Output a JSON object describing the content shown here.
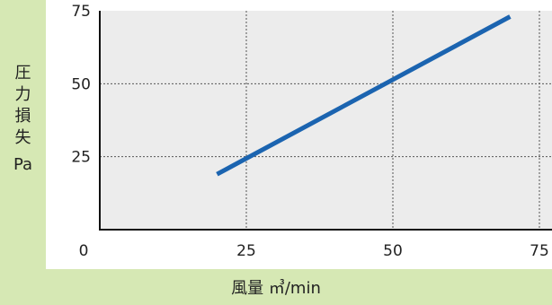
{
  "chart_data": {
    "type": "line",
    "title": "",
    "ylabel_chars": [
      "圧",
      "力",
      "損",
      "失"
    ],
    "ylabel_unit": "Pa",
    "xlabel": "風量 ㎥/min",
    "xlim": [
      0,
      75
    ],
    "ylim": [
      0,
      75
    ],
    "xticks": [
      0,
      25,
      50,
      75
    ],
    "yticks": [
      25,
      50,
      75
    ],
    "grid": true,
    "series": [
      {
        "x": [
          20,
          70
        ],
        "y": [
          19,
          73
        ],
        "color": "#1b64b0"
      }
    ]
  }
}
